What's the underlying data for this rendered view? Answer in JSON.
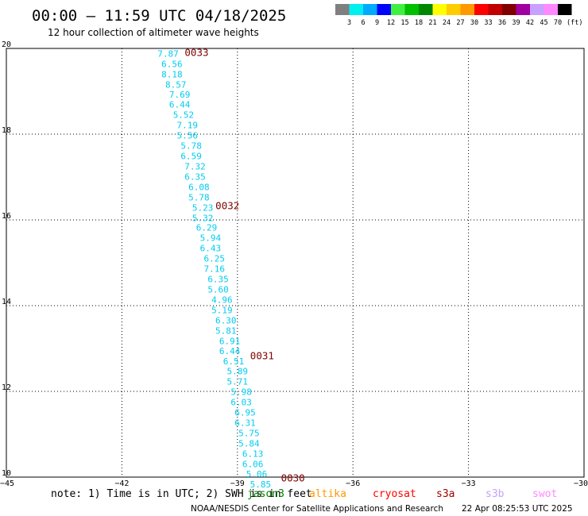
{
  "header": {
    "title": "00:00 – 11:59 UTC 04/18/2025",
    "subtitle": "12 hour collection of altimeter wave heights"
  },
  "color_scale": {
    "labels": [
      "3",
      "6",
      "9",
      "12",
      "15",
      "18",
      "21",
      "24",
      "27",
      "30",
      "33",
      "36",
      "39",
      "42",
      "45",
      "70"
    ],
    "unit": "(ft)",
    "colors": [
      "#7f7f7f",
      "#00f0f0",
      "#00aaff",
      "#0000ff",
      "#40f040",
      "#00c000",
      "#008800",
      "#ffff00",
      "#ffcc00",
      "#ff9900",
      "#ff0000",
      "#c00000",
      "#800000",
      "#a000a0",
      "#c8a0ff",
      "#ff88ff",
      "#000000"
    ]
  },
  "footer": {
    "note": "note: 1) Time is in UTC; 2) SWH is in feet",
    "satellites": [
      {
        "name": "jason3",
        "color": "#008000"
      },
      {
        "name": "altika",
        "color": "#ff9900"
      },
      {
        "name": "cryosat",
        "color": "#ff0000"
      },
      {
        "name": "s3a",
        "color": "#a00000"
      },
      {
        "name": "s3b",
        "color": "#c8a0ff"
      },
      {
        "name": "swot",
        "color": "#ff88ff"
      }
    ],
    "credit": "NOAA/NESDIS Center for Satellite Applications and Research",
    "generated": "22 Apr 08:25:53 UTC 2025"
  },
  "chart_data": {
    "type": "scatter",
    "xlim": [
      -45,
      -30
    ],
    "ylim": [
      10,
      20
    ],
    "x_ticks": [
      "−45",
      "−42",
      "−39",
      "−36",
      "−33",
      "−30"
    ],
    "x_tick_values": [
      -45,
      -42,
      -39,
      -36,
      -33,
      -30
    ],
    "y_ticks": [
      "20",
      "18",
      "16",
      "14",
      "12",
      "10"
    ],
    "y_tick_values": [
      20,
      18,
      16,
      14,
      12,
      10
    ],
    "grid": true,
    "grid_style": "dotted",
    "point_color": "#00ccf0",
    "pass_label_color": "#800000",
    "points": [
      {
        "lon": -40.8,
        "lat": 19.88,
        "swh": "7.87"
      },
      {
        "lon": -40.7,
        "lat": 19.64,
        "swh": "6.56"
      },
      {
        "lon": -40.7,
        "lat": 19.4,
        "swh": "8.18"
      },
      {
        "lon": -40.6,
        "lat": 19.16,
        "swh": "8.57"
      },
      {
        "lon": -40.5,
        "lat": 18.93,
        "swh": "7.69"
      },
      {
        "lon": -40.5,
        "lat": 18.69,
        "swh": "6.44"
      },
      {
        "lon": -40.4,
        "lat": 18.45,
        "swh": "5.52"
      },
      {
        "lon": -40.3,
        "lat": 18.21,
        "swh": "7.19"
      },
      {
        "lon": -40.3,
        "lat": 17.97,
        "swh": "5.56"
      },
      {
        "lon": -40.2,
        "lat": 17.73,
        "swh": "5.78"
      },
      {
        "lon": -40.2,
        "lat": 17.49,
        "swh": "6.59"
      },
      {
        "lon": -40.1,
        "lat": 17.25,
        "swh": "7.32"
      },
      {
        "lon": -40.1,
        "lat": 17.01,
        "swh": "6.35"
      },
      {
        "lon": -40.0,
        "lat": 16.77,
        "swh": "6.08"
      },
      {
        "lon": -40.0,
        "lat": 16.53,
        "swh": "5.78"
      },
      {
        "lon": -39.9,
        "lat": 16.29,
        "swh": "5.23"
      },
      {
        "lon": -39.9,
        "lat": 16.05,
        "swh": "5.32"
      },
      {
        "lon": -39.8,
        "lat": 15.82,
        "swh": "6.29"
      },
      {
        "lon": -39.7,
        "lat": 15.58,
        "swh": "5.94"
      },
      {
        "lon": -39.7,
        "lat": 15.34,
        "swh": "6.43"
      },
      {
        "lon": -39.6,
        "lat": 15.1,
        "swh": "6.25"
      },
      {
        "lon": -39.6,
        "lat": 14.86,
        "swh": "7.16"
      },
      {
        "lon": -39.5,
        "lat": 14.62,
        "swh": "6.35"
      },
      {
        "lon": -39.5,
        "lat": 14.38,
        "swh": "5.60"
      },
      {
        "lon": -39.4,
        "lat": 14.14,
        "swh": "4.96"
      },
      {
        "lon": -39.4,
        "lat": 13.9,
        "swh": "5.19"
      },
      {
        "lon": -39.3,
        "lat": 13.66,
        "swh": "6.30"
      },
      {
        "lon": -39.3,
        "lat": 13.42,
        "swh": "5.81"
      },
      {
        "lon": -39.2,
        "lat": 13.18,
        "swh": "6.91"
      },
      {
        "lon": -39.2,
        "lat": 12.94,
        "swh": "6.44"
      },
      {
        "lon": -39.1,
        "lat": 12.7,
        "swh": "6.51"
      },
      {
        "lon": -39.0,
        "lat": 12.47,
        "swh": "5.89"
      },
      {
        "lon": -39.0,
        "lat": 12.23,
        "swh": "5.71"
      },
      {
        "lon": -38.9,
        "lat": 11.99,
        "swh": "5.98"
      },
      {
        "lon": -38.9,
        "lat": 11.75,
        "swh": "6.03"
      },
      {
        "lon": -38.8,
        "lat": 11.51,
        "swh": "6.95"
      },
      {
        "lon": -38.8,
        "lat": 11.27,
        "swh": "6.31"
      },
      {
        "lon": -38.7,
        "lat": 11.03,
        "swh": "5.75"
      },
      {
        "lon": -38.7,
        "lat": 10.79,
        "swh": "5.84"
      },
      {
        "lon": -38.6,
        "lat": 10.55,
        "swh": "6.13"
      },
      {
        "lon": -38.6,
        "lat": 10.31,
        "swh": "6.06"
      },
      {
        "lon": -38.5,
        "lat": 10.07,
        "swh": "5.06"
      },
      {
        "lon": -38.4,
        "lat": 9.83,
        "swh": "5.85"
      }
    ],
    "pass_labels": [
      {
        "lon": -40.7,
        "lat": 19.9,
        "text": "0033"
      },
      {
        "lon": -39.9,
        "lat": 16.32,
        "text": "0032"
      },
      {
        "lon": -39.0,
        "lat": 12.82,
        "text": "0031"
      },
      {
        "lon": -38.2,
        "lat": 9.97,
        "text": "0030"
      }
    ]
  }
}
